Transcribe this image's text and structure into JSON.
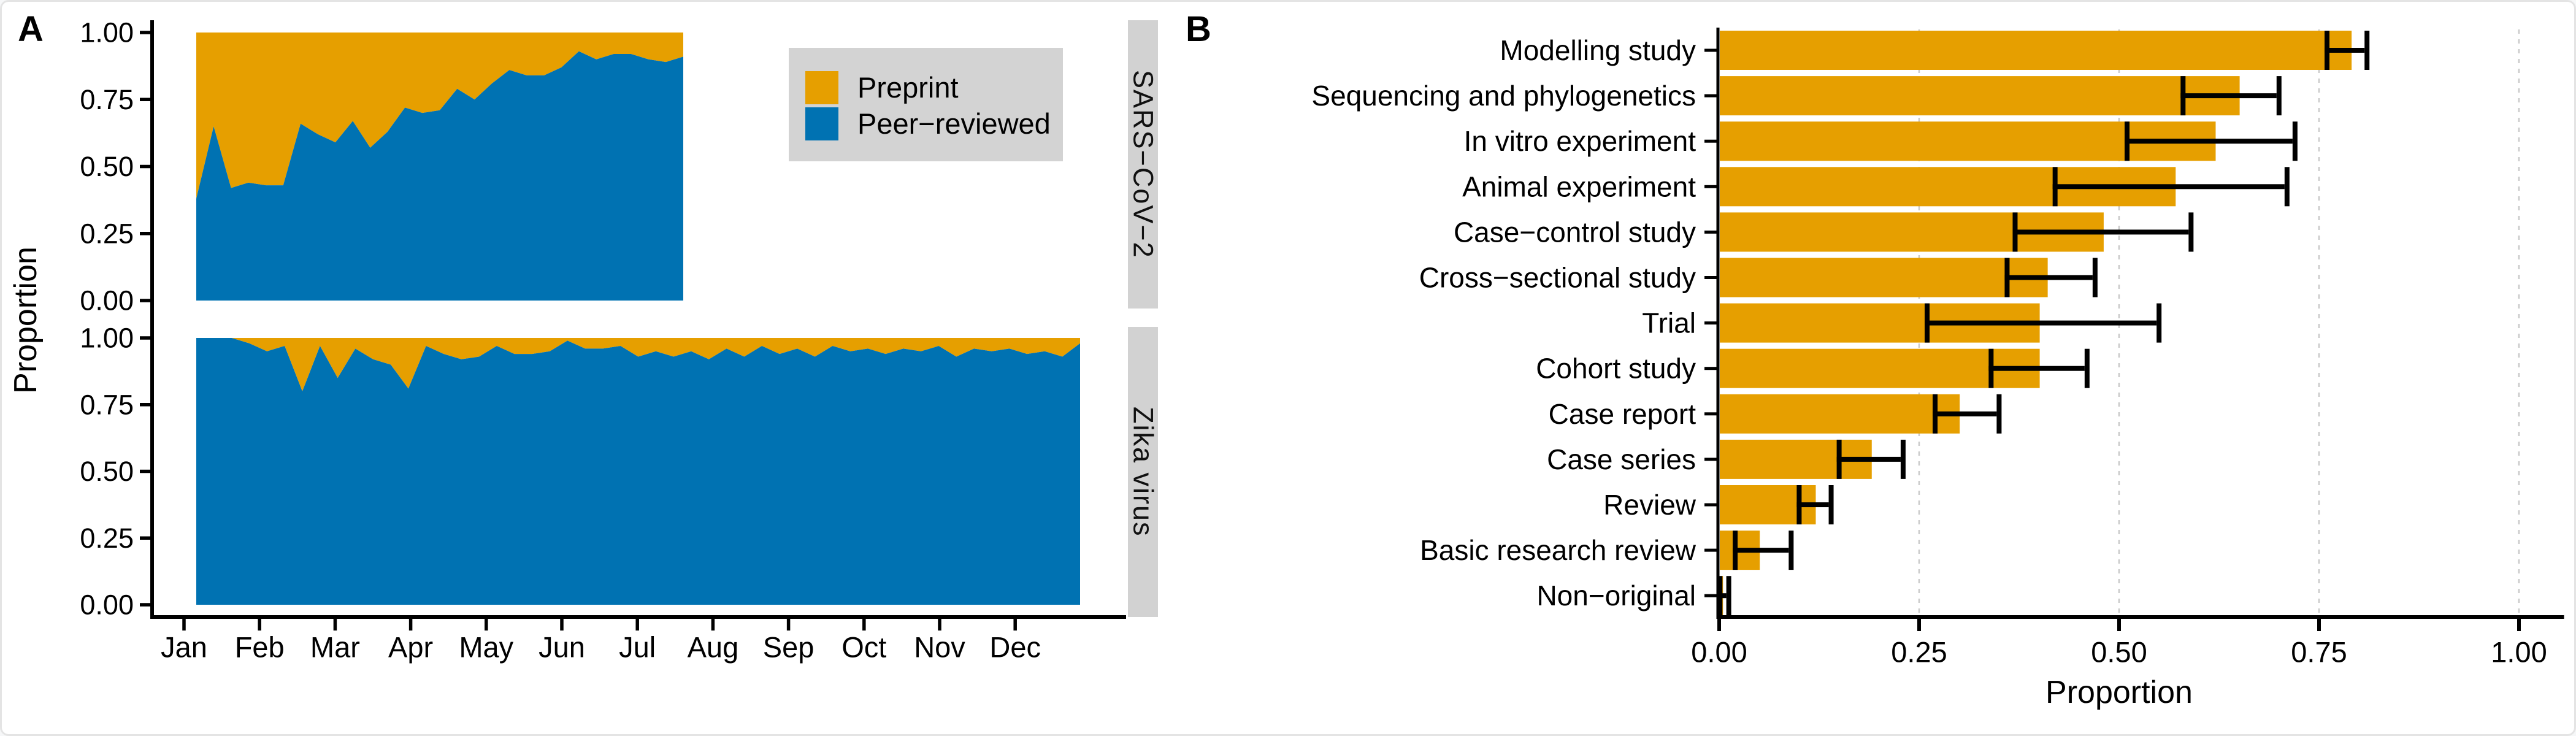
{
  "figure": {
    "panel_a_label": "A",
    "panel_b_label": "B"
  },
  "colors": {
    "preprint_orange": "#E69F00",
    "peer_reviewed_blue": "#0072B2",
    "facet_strip_gray": "#D2D2D2",
    "legend_background_gray": "#D3D3D3",
    "gridline_gray": "#C9C9C9",
    "axis_black": "#000000"
  },
  "panel_a": {
    "y_axis_label": "Proportion",
    "y_tick_labels": [
      "1.00",
      "0.75",
      "0.50",
      "0.25",
      "0.00"
    ],
    "month_labels": [
      "Jan",
      "Feb",
      "Mar",
      "Apr",
      "May",
      "Jun",
      "Jul",
      "Aug",
      "Sep",
      "Oct",
      "Nov",
      "Dec"
    ],
    "legend": {
      "items": [
        {
          "label": "Preprint",
          "color_key": "preprint_orange"
        },
        {
          "label": "Peer−reviewed",
          "color_key": "peer_reviewed_blue"
        }
      ]
    },
    "facets": [
      {
        "strip_label": "SARS−CoV−2"
      },
      {
        "strip_label": "Zika virus"
      }
    ]
  },
  "panel_b": {
    "x_axis_label": "Proportion",
    "x_tick_labels": [
      "0.00",
      "0.25",
      "0.50",
      "0.75",
      "1.00"
    ]
  },
  "chart_data": [
    {
      "type": "area",
      "facet": "SARS−CoV−2",
      "stacked": true,
      "stack_total": 1.0,
      "x_description": "weekly points, mid-January to late July",
      "ylabel": "Proportion",
      "ylim": [
        0,
        1
      ],
      "series": [
        {
          "name": "Peer−reviewed",
          "values": [
            0.38,
            0.65,
            0.42,
            0.44,
            0.43,
            0.43,
            0.66,
            0.62,
            0.59,
            0.67,
            0.57,
            0.63,
            0.72,
            0.7,
            0.71,
            0.79,
            0.75,
            0.81,
            0.86,
            0.84,
            0.84,
            0.87,
            0.93,
            0.9,
            0.92,
            0.92,
            0.9,
            0.89,
            0.91
          ]
        },
        {
          "name": "Preprint",
          "values_rule": "stack_total minus Peer−reviewed (upper band of stacked area)"
        }
      ]
    },
    {
      "type": "area",
      "facet": "Zika virus",
      "stacked": true,
      "stack_total": 1.0,
      "x_description": "weekly points, mid-January to late December",
      "ylabel": "Proportion",
      "ylim": [
        0,
        1
      ],
      "series": [
        {
          "name": "Peer−reviewed",
          "values": [
            1.0,
            1.0,
            1.0,
            0.98,
            0.95,
            0.97,
            0.8,
            0.97,
            0.85,
            0.96,
            0.92,
            0.9,
            0.81,
            0.97,
            0.94,
            0.92,
            0.93,
            0.97,
            0.94,
            0.94,
            0.95,
            0.99,
            0.96,
            0.96,
            0.97,
            0.93,
            0.95,
            0.93,
            0.95,
            0.92,
            0.96,
            0.93,
            0.97,
            0.94,
            0.96,
            0.93,
            0.97,
            0.95,
            0.96,
            0.94,
            0.96,
            0.95,
            0.97,
            0.93,
            0.96,
            0.95,
            0.96,
            0.94,
            0.95,
            0.93,
            0.98
          ]
        },
        {
          "name": "Preprint",
          "values_rule": "stack_total minus Peer−reviewed (upper band of stacked area)"
        }
      ]
    },
    {
      "type": "bar",
      "orientation": "horizontal",
      "xlabel": "Proportion",
      "xlim": [
        0,
        1
      ],
      "x_ticks": [
        0,
        0.25,
        0.5,
        0.75,
        1
      ],
      "gridlines": "dashed vertical at 0.25, 0.50, 0.75, 1.00",
      "error_bars": "95% CI with caps",
      "categories": [
        "Modelling study",
        "Sequencing and phylogenetics",
        "In vitro experiment",
        "Animal experiment",
        "Case−control study",
        "Cross−sectional study",
        "Trial",
        "Cohort study",
        "Case report",
        "Case series",
        "Review",
        "Basic research review",
        "Non−original"
      ],
      "values": [
        0.79,
        0.65,
        0.62,
        0.57,
        0.48,
        0.41,
        0.4,
        0.4,
        0.3,
        0.19,
        0.12,
        0.05,
        0.004
      ],
      "ci_low": [
        0.76,
        0.58,
        0.51,
        0.42,
        0.37,
        0.36,
        0.26,
        0.34,
        0.27,
        0.15,
        0.1,
        0.02,
        0.001
      ],
      "ci_high": [
        0.81,
        0.7,
        0.72,
        0.71,
        0.59,
        0.47,
        0.55,
        0.46,
        0.35,
        0.23,
        0.14,
        0.09,
        0.012
      ]
    }
  ]
}
